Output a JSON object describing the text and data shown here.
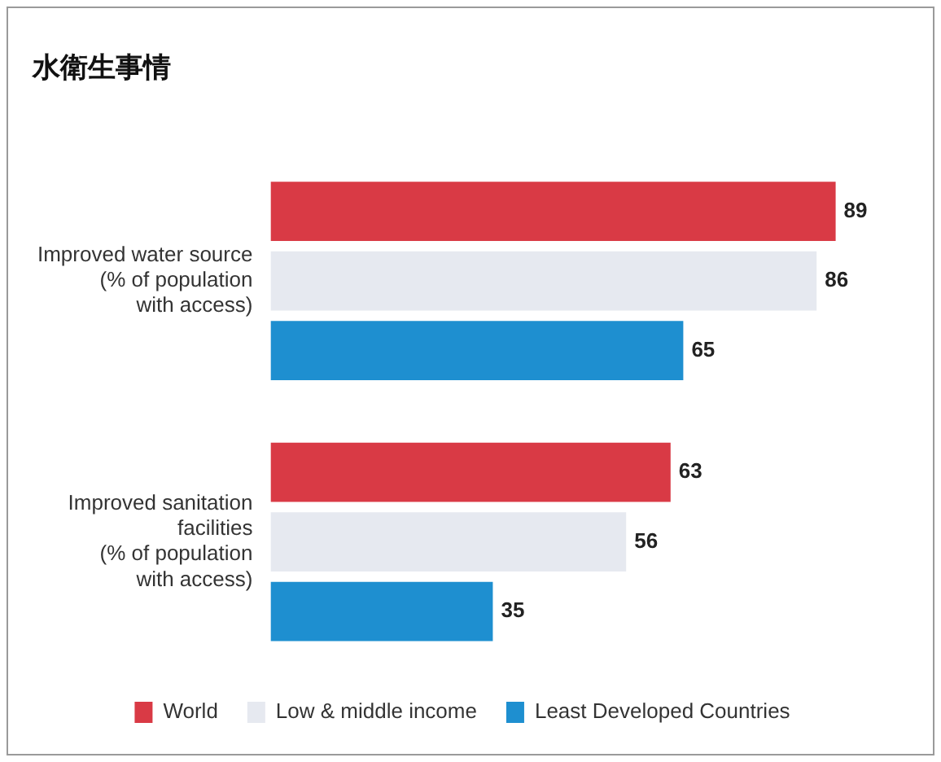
{
  "chart_data": {
    "type": "bar",
    "orientation": "horizontal",
    "title": "水衛生事情",
    "categories": [
      "Improved water source\n(% of population\nwith access)",
      "Improved sanitation\nfacilities\n(% of population\nwith access)"
    ],
    "series": [
      {
        "name": "World",
        "color": "#d93a45",
        "values": [
          89,
          63
        ]
      },
      {
        "name": "Low & middle income",
        "color": "#e6e9f0",
        "values": [
          86,
          56
        ]
      },
      {
        "name": "Least Developed Countries",
        "color": "#1e8fd0",
        "values": [
          65,
          35
        ]
      }
    ],
    "data_labels": true,
    "legend": "bottom",
    "tick_labels": "y"
  }
}
